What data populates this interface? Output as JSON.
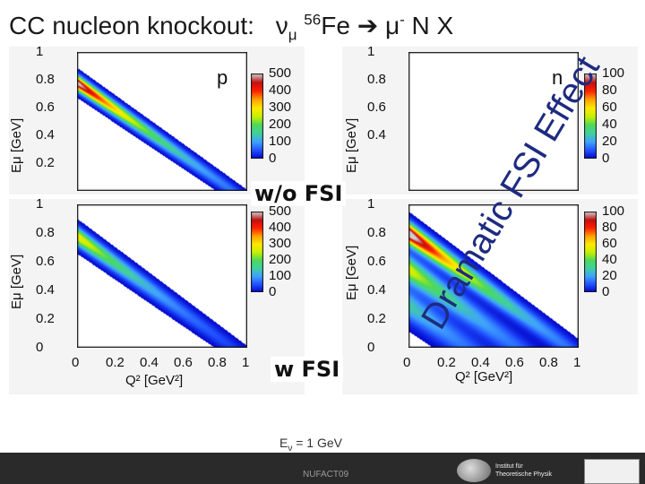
{
  "slide": {
    "title_prefix": "CC nucleon knockout:",
    "title_nu": "ν",
    "title_mu_sub": "μ",
    "title_A": "56",
    "title_Fe": "Fe",
    "title_arrow": "➔",
    "title_mu": "μ",
    "title_minus": "-",
    "title_rest": "N X",
    "effect_label": "Dramatic FSI Effect",
    "wo_fsi_label": "w/o FSI",
    "w_fsi_label": "w FSI",
    "energy_E": "E",
    "energy_sub": "ν",
    "energy_rest": "= 1 GeV",
    "footer_conf": "NUFACT09",
    "logo_text_1": "Institut für",
    "logo_text_2": "Theoretische Physik"
  },
  "colors": {
    "accent": "#1e2b80",
    "colormap": [
      "#0000c8",
      "#2050ff",
      "#3fa0ff",
      "#40d0a0",
      "#4fd85a",
      "#c8f000",
      "#ffe800",
      "#ffa000",
      "#ff2000",
      "#c01010",
      "#d0d0d0"
    ]
  },
  "chart_data": [
    {
      "type": "heatmap",
      "panel_tag": "p",
      "xlabel": "",
      "ylabel": "Eμ [GeV]",
      "xlim": [
        0,
        1
      ],
      "ylim": [
        0,
        1
      ],
      "y_ticks": [
        "1",
        "0.8",
        "0.6",
        "0.4",
        "0.2"
      ],
      "colorbar_ticks": [
        "500",
        "400",
        "300",
        "200",
        "100",
        "0"
      ],
      "colorbar_max": 500,
      "bands": [
        {
          "center": 0.78,
          "slope": -0.85,
          "peak": 520,
          "width": 0.05
        }
      ]
    },
    {
      "type": "heatmap",
      "panel_tag": "n",
      "xlabel": "",
      "ylabel": "Eμ [GeV]",
      "xlim": [
        0,
        1
      ],
      "ylim": [
        0,
        1
      ],
      "y_ticks": [
        "1",
        "0.8",
        "0.6",
        "0.4"
      ],
      "colorbar_ticks": [
        "100",
        "80",
        "60",
        "40",
        "20",
        "0"
      ],
      "colorbar_max": 100,
      "bands": []
    },
    {
      "type": "heatmap",
      "panel_tag": "",
      "xlabel": "Q² [GeV²]",
      "ylabel": "Eμ [GeV]",
      "xlim": [
        0,
        1
      ],
      "ylim": [
        0,
        1
      ],
      "x_ticks": [
        "0",
        "0.2",
        "0.4",
        "0.6",
        "0.8",
        "1"
      ],
      "y_ticks": [
        "1",
        "0.8",
        "0.6",
        "0.4",
        "0.2",
        "0"
      ],
      "colorbar_ticks": [
        "500",
        "400",
        "300",
        "200",
        "100",
        "0"
      ],
      "colorbar_max": 500,
      "bands": [
        {
          "center": 0.78,
          "slope": -0.85,
          "peak": 300,
          "width": 0.06
        }
      ]
    },
    {
      "type": "heatmap",
      "panel_tag": "",
      "xlabel": "Q² [GeV²]",
      "ylabel": "Eμ [GeV]",
      "xlim": [
        0,
        1
      ],
      "ylim": [
        0,
        1
      ],
      "x_ticks": [
        "0",
        "0.2",
        "0.4",
        "0.6",
        "0.8",
        "1"
      ],
      "y_ticks": [
        "1",
        "0.8",
        "0.6",
        "0.4",
        "0.2",
        "0"
      ],
      "colorbar_ticks": [
        "100",
        "80",
        "60",
        "40",
        "20",
        "0"
      ],
      "colorbar_max": 100,
      "bands": [
        {
          "center": 0.8,
          "slope": -0.85,
          "peak": 110,
          "width": 0.07
        },
        {
          "center": 0.55,
          "slope": -0.85,
          "peak": 55,
          "width": 0.09
        },
        {
          "center": 0.3,
          "slope": -0.85,
          "peak": 30,
          "width": 0.1
        }
      ]
    }
  ]
}
